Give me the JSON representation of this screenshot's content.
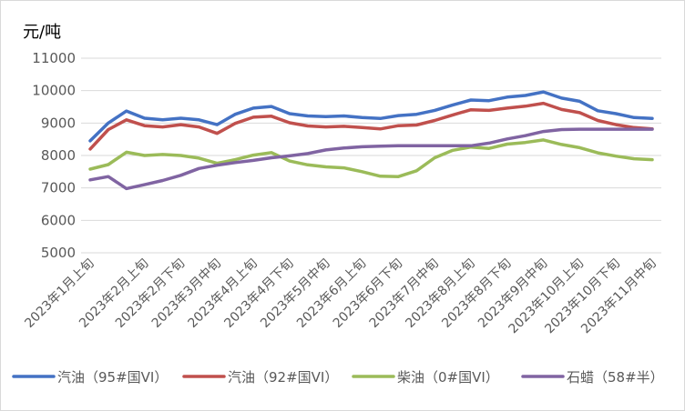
{
  "chart_data": {
    "type": "line",
    "title": "",
    "ylabel": "元/吨",
    "xlabel": "",
    "ylim": [
      5000,
      11000
    ],
    "yticks": [
      5000,
      6000,
      7000,
      8000,
      9000,
      10000,
      11000
    ],
    "grid": true,
    "legend": "bottom",
    "x": [
      "2023年1月上旬",
      "2023年1月中旬",
      "2023年1月下旬",
      "2023年2月上旬",
      "2023年2月中旬",
      "2023年2月下旬",
      "2023年3月上旬",
      "2023年3月中旬",
      "2023年3月下旬",
      "2023年4月上旬",
      "2023年4月中旬",
      "2023年4月下旬",
      "2023年5月上旬",
      "2023年5月中旬",
      "2023年5月下旬",
      "2023年6月上旬",
      "2023年6月中旬",
      "2023年6月下旬",
      "2023年7月上旬",
      "2023年7月中旬",
      "2023年7月下旬",
      "2023年8月上旬",
      "2023年8月中旬",
      "2023年8月下旬",
      "2023年9月上旬",
      "2023年9月中旬",
      "2023年9月下旬",
      "2023年10月上旬",
      "2023年10月中旬",
      "2023年10月下旬",
      "2023年11月上旬",
      "2023年11月中旬"
    ],
    "x_tick_labels": [
      "2023年1月上旬",
      "2023年2月上旬",
      "2023年2月下旬",
      "2023年3月中旬",
      "2023年4月上旬",
      "2023年4月下旬",
      "2023年5月中旬",
      "2023年6月上旬",
      "2023年6月下旬",
      "2023年7月中旬",
      "2023年8月上旬",
      "2023年8月下旬",
      "2023年9月中旬",
      "2023年10月上旬",
      "2023年10月下旬",
      "2023年11月中旬"
    ],
    "series": [
      {
        "name": "汽油（95#国VI）",
        "color": "#4472c4",
        "values": [
          8450,
          9000,
          9370,
          9150,
          9100,
          9150,
          9100,
          8950,
          9270,
          9460,
          9510,
          9290,
          9220,
          9200,
          9220,
          9170,
          9140,
          9230,
          9270,
          9390,
          9560,
          9710,
          9690,
          9800,
          9850,
          9960,
          9770,
          9670,
          9380,
          9290,
          9170,
          9140
        ]
      },
      {
        "name": "汽油（92#国VI）",
        "color": "#c0504d",
        "values": [
          8200,
          8800,
          9100,
          8920,
          8880,
          8950,
          8880,
          8680,
          8990,
          9180,
          9210,
          9010,
          8910,
          8880,
          8900,
          8860,
          8820,
          8920,
          8940,
          9080,
          9250,
          9410,
          9390,
          9460,
          9520,
          9610,
          9420,
          9320,
          9080,
          8950,
          8860,
          8820
        ]
      },
      {
        "name": "柴油（0#国VI）",
        "color": "#9bbb59",
        "values": [
          7580,
          7720,
          8100,
          8000,
          8030,
          8000,
          7920,
          7760,
          7870,
          8010,
          8090,
          7830,
          7710,
          7650,
          7620,
          7500,
          7360,
          7350,
          7530,
          7930,
          8160,
          8260,
          8220,
          8350,
          8400,
          8480,
          8340,
          8240,
          8080,
          7980,
          7900,
          7870
        ]
      },
      {
        "name": "石蜡（58#半）",
        "color": "#8064a2",
        "values": [
          7250,
          7350,
          6980,
          7100,
          7230,
          7390,
          7600,
          7700,
          7780,
          7850,
          7930,
          7990,
          8060,
          8170,
          8230,
          8270,
          8290,
          8300,
          8300,
          8300,
          8300,
          8300,
          8380,
          8510,
          8610,
          8740,
          8800,
          8810,
          8810,
          8810,
          8810,
          8810
        ]
      }
    ]
  }
}
